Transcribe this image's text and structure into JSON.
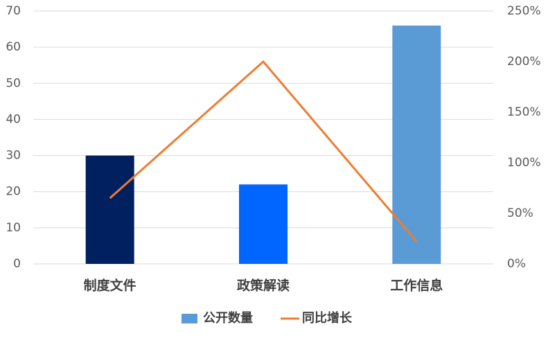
{
  "chart_data": {
    "type": "bar",
    "categories": [
      "制度文件",
      "政策解读",
      "工作信息"
    ],
    "series": [
      {
        "name": "公开数量",
        "color": "#5b9bd5",
        "colors": [
          "#002060",
          "#0066ff",
          "#5b9bd5"
        ],
        "values": [
          30,
          22,
          66
        ]
      },
      {
        "name": "同比增长",
        "type": "line",
        "axis": "y2",
        "color": "#ed7d31",
        "values": [
          65,
          200,
          22
        ]
      }
    ],
    "ylim": [
      0,
      70
    ],
    "yticks": [
      0,
      10,
      20,
      30,
      40,
      50,
      60,
      70
    ],
    "y2lim": [
      0,
      250
    ],
    "y2ticks": [
      {
        "value": 0,
        "label": "0%"
      },
      {
        "value": 50,
        "label": "50%"
      },
      {
        "value": 100,
        "label": "100%"
      },
      {
        "value": 150,
        "label": "150%"
      },
      {
        "value": 200,
        "label": "200%"
      },
      {
        "value": 250,
        "label": "250%"
      }
    ],
    "grid": true,
    "legend": "bottom"
  }
}
